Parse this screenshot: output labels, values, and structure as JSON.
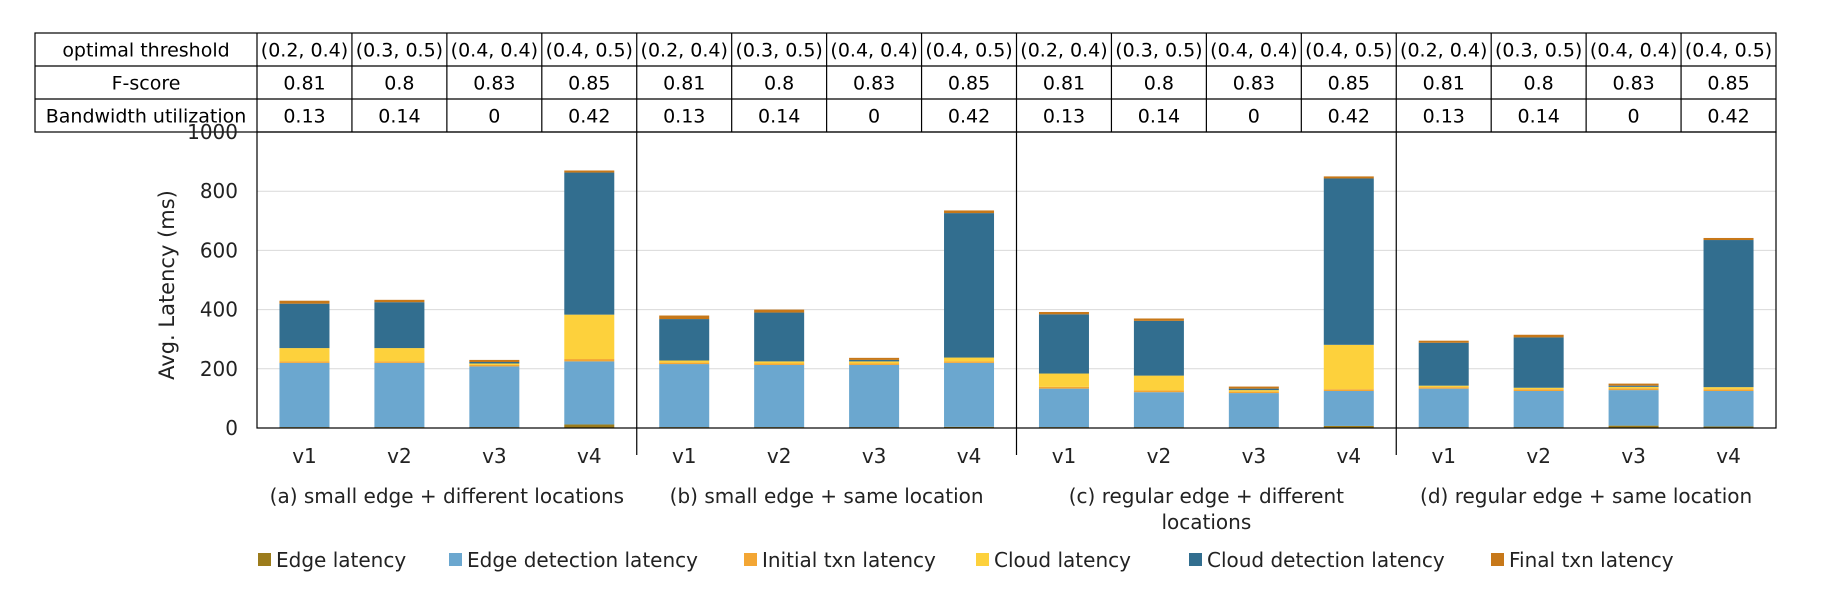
{
  "table": {
    "rows": [
      {
        "label": "optimal threshold",
        "cells": [
          "(0.2, 0.4)",
          "(0.3, 0.5)",
          "(0.4, 0.4)",
          "(0.4, 0.5)",
          "(0.2, 0.4)",
          "(0.3, 0.5)",
          "(0.4, 0.4)",
          "(0.4, 0.5)",
          "(0.2, 0.4)",
          "(0.3, 0.5)",
          "(0.4, 0.4)",
          "(0.4, 0.5)",
          "(0.2, 0.4)",
          "(0.3, 0.5)",
          "(0.4, 0.4)",
          "(0.4, 0.5)"
        ]
      },
      {
        "label": "F-score",
        "cells": [
          "0.81",
          "0.8",
          "0.83",
          "0.85",
          "0.81",
          "0.8",
          "0.83",
          "0.85",
          "0.81",
          "0.8",
          "0.83",
          "0.85",
          "0.81",
          "0.8",
          "0.83",
          "0.85"
        ]
      },
      {
        "label": "Bandwidth utilization",
        "cells": [
          "0.13",
          "0.14",
          "0",
          "0.42",
          "0.13",
          "0.14",
          "0",
          "0.42",
          "0.13",
          "0.14",
          "0",
          "0.42",
          "0.13",
          "0.14",
          "0",
          "0.42"
        ]
      }
    ]
  },
  "chart_data": {
    "type": "bar",
    "stacked": true,
    "ylabel": "Avg. Latency (ms)",
    "ylim": [
      0,
      1000
    ],
    "yticks": [
      0,
      200,
      400,
      600,
      800,
      1000
    ],
    "grid": true,
    "legend_position": "bottom",
    "categories": [
      "v1",
      "v2",
      "v3",
      "v4"
    ],
    "groups": [
      {
        "label": "(a) small edge + different locations",
        "stacks": [
          [
            3,
            217,
            5,
            45,
            150,
            10
          ],
          [
            3,
            217,
            5,
            45,
            155,
            8
          ],
          [
            3,
            205,
            5,
            5,
            5,
            7
          ],
          [
            12,
            213,
            8,
            150,
            480,
            7
          ]
        ]
      },
      {
        "label": "(b) small edge + same location",
        "stacks": [
          [
            3,
            213,
            5,
            7,
            140,
            12
          ],
          [
            3,
            210,
            5,
            7,
            165,
            10
          ],
          [
            3,
            210,
            5,
            7,
            5,
            7
          ],
          [
            4,
            216,
            5,
            13,
            488,
            9
          ]
        ]
      },
      {
        "label": "(c) regular edge + different locations",
        "stacks": [
          [
            3,
            130,
            6,
            45,
            200,
            8
          ],
          [
            3,
            118,
            6,
            50,
            185,
            8
          ],
          [
            3,
            115,
            5,
            5,
            5,
            7
          ],
          [
            7,
            118,
            6,
            150,
            562,
            7
          ]
        ]
      },
      {
        "label": "(d) regular edge + same location",
        "stacks": [
          [
            3,
            130,
            5,
            5,
            145,
            7
          ],
          [
            3,
            122,
            6,
            5,
            170,
            9
          ],
          [
            8,
            120,
            6,
            5,
            4,
            7
          ],
          [
            5,
            120,
            6,
            7,
            497,
            7
          ]
        ]
      }
    ],
    "series": [
      {
        "name": "Edge latency",
        "color": "#9c7c1c"
      },
      {
        "name": "Edge detection latency",
        "color": "#6ba7cf"
      },
      {
        "name": "Initial txn latency",
        "color": "#f3a634"
      },
      {
        "name": "Cloud latency",
        "color": "#fdd13c"
      },
      {
        "name": "Cloud detection latency",
        "color": "#326e8f"
      },
      {
        "name": "Final txn latency",
        "color": "#c77819"
      }
    ]
  }
}
